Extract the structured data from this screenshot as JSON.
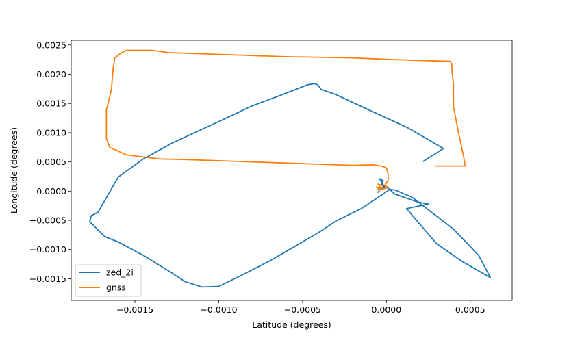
{
  "chart_data": {
    "type": "line",
    "xlabel": "Latitude (degrees)",
    "ylabel": "Longitude (degrees)",
    "xlim": [
      -0.00188,
      0.00075
    ],
    "ylim": [
      -0.00187,
      0.00258
    ],
    "xticks": [
      -0.0015,
      -0.001,
      -0.0005,
      0.0,
      0.0005
    ],
    "xtick_labels": [
      "−0.0015",
      "−0.0010",
      "−0.0005",
      "0.0000",
      "0.0005"
    ],
    "yticks": [
      -0.0015,
      -0.001,
      -0.0005,
      0.0,
      0.0005,
      0.001,
      0.0015,
      0.002,
      0.0025
    ],
    "ytick_labels": [
      "−0.0015",
      "−0.0010",
      "−0.0005",
      "0.0000",
      "0.0005",
      "0.0010",
      "0.0015",
      "0.0020",
      "0.0025"
    ],
    "grid": false,
    "legend": {
      "position": "lower-left"
    },
    "series": [
      {
        "name": "zed_2i",
        "color": "#1f77b4",
        "points": [
          [
            0.00022,
            0.00051
          ],
          [
            0.00034,
            0.00073
          ],
          [
            0.00031,
            0.00078
          ],
          [
            0.00013,
            0.00108
          ],
          [
            -0.00015,
            0.00145
          ],
          [
            -0.0003,
            0.00165
          ],
          [
            -0.00039,
            0.00174
          ],
          [
            -0.00041,
            0.00182
          ],
          [
            -0.00043,
            0.00184
          ],
          [
            -0.00047,
            0.00182
          ],
          [
            -0.00065,
            0.00162
          ],
          [
            -0.0008,
            0.00146
          ],
          [
            -0.001,
            0.00119
          ],
          [
            -0.00128,
            0.00082
          ],
          [
            -0.00145,
            0.00055
          ],
          [
            -0.0016,
            0.00024
          ],
          [
            -0.00172,
            -0.00036
          ],
          [
            -0.00176,
            -0.00042
          ],
          [
            -0.00177,
            -0.00052
          ],
          [
            -0.00168,
            -0.00078
          ],
          [
            -0.0016,
            -0.00087
          ],
          [
            -0.00145,
            -0.0011
          ],
          [
            -0.00128,
            -0.0014
          ],
          [
            -0.0012,
            -0.00155
          ],
          [
            -0.0011,
            -0.00164
          ],
          [
            -0.001,
            -0.00163
          ],
          [
            -0.00085,
            -0.00142
          ],
          [
            -0.0007,
            -0.0012
          ],
          [
            -0.00062,
            -0.00107
          ],
          [
            -0.0004,
            -0.0007
          ],
          [
            -0.0003,
            -0.00051
          ],
          [
            -0.00015,
            -0.0003
          ],
          [
            -2e-05,
            -5e-05
          ],
          [
            2e-05,
            3e-05
          ],
          [
            5e-05,
            2e-05
          ],
          [
            0.00015,
            -0.0001
          ],
          [
            0.0004,
            -0.00065
          ],
          [
            0.00055,
            -0.0011
          ],
          [
            0.00062,
            -0.00148
          ],
          [
            0.00045,
            -0.0012
          ],
          [
            0.0003,
            -0.0009
          ],
          [
            0.00012,
            -0.0003
          ],
          [
            0.00025,
            -0.00022
          ],
          [
            0.00018,
            -0.00018
          ],
          [
            0.0001,
            -0.0001
          ],
          [
            5e-05,
            -5e-05
          ],
          [
            0.0,
            8e-05
          ],
          [
            -3e-05,
            0.00012
          ],
          [
            -2e-05,
            0.00018
          ],
          [
            -4e-05,
            0.00021
          ],
          [
            -1e-05,
            6e-05
          ],
          [
            -4e-05,
            2e-05
          ],
          [
            -5e-05,
            -2e-05
          ]
        ]
      },
      {
        "name": "gnss",
        "color": "#ff7f0e",
        "points": [
          [
            0.00029,
            0.00043
          ],
          [
            0.00047,
            0.00043
          ],
          [
            0.00046,
            0.0006
          ],
          [
            0.00043,
            0.001
          ],
          [
            0.0004,
            0.00145
          ],
          [
            0.0004,
            0.00183
          ],
          [
            0.00039,
            0.0021
          ],
          [
            0.00039,
            0.00218
          ],
          [
            0.00038,
            0.00222
          ],
          [
            5e-05,
            0.00225
          ],
          [
            -0.0002,
            0.00228
          ],
          [
            -0.0006,
            0.0023
          ],
          [
            -0.001,
            0.00234
          ],
          [
            -0.0013,
            0.00237
          ],
          [
            -0.0014,
            0.00241
          ],
          [
            -0.00155,
            0.00241
          ],
          [
            -0.00158,
            0.00237
          ],
          [
            -0.00162,
            0.00228
          ],
          [
            -0.00163,
            0.0021
          ],
          [
            -0.00164,
            0.00175
          ],
          [
            -0.00166,
            0.0015
          ],
          [
            -0.00167,
            0.0014
          ],
          [
            -0.00167,
            0.00122
          ],
          [
            -0.00167,
            0.0009
          ],
          [
            -0.00165,
            0.00075
          ],
          [
            -0.00155,
            0.00062
          ],
          [
            -0.00135,
            0.00055
          ],
          [
            -0.0012,
            0.00054
          ],
          [
            -0.001,
            0.00052
          ],
          [
            -0.0008,
            0.0005
          ],
          [
            -0.0006,
            0.00048
          ],
          [
            -0.0004,
            0.00046
          ],
          [
            -0.0002,
            0.00044
          ],
          [
            -8e-05,
            0.00045
          ],
          [
            -3e-05,
            0.00043
          ],
          [
            0.0,
            0.0004
          ],
          [
            1e-05,
            0.0003
          ],
          [
            1e-05,
            0.00018
          ],
          [
            -1e-05,
            0.0001
          ],
          [
            1e-05,
            6e-05
          ],
          [
            -3e-05,
            3e-05
          ],
          [
            -2e-05,
            9e-05
          ],
          [
            -5e-05,
            0.00012
          ],
          [
            -3e-05,
            4e-05
          ],
          [
            -6e-05,
            7e-05
          ],
          [
            -4e-05,
            1e-05
          ]
        ]
      }
    ]
  }
}
